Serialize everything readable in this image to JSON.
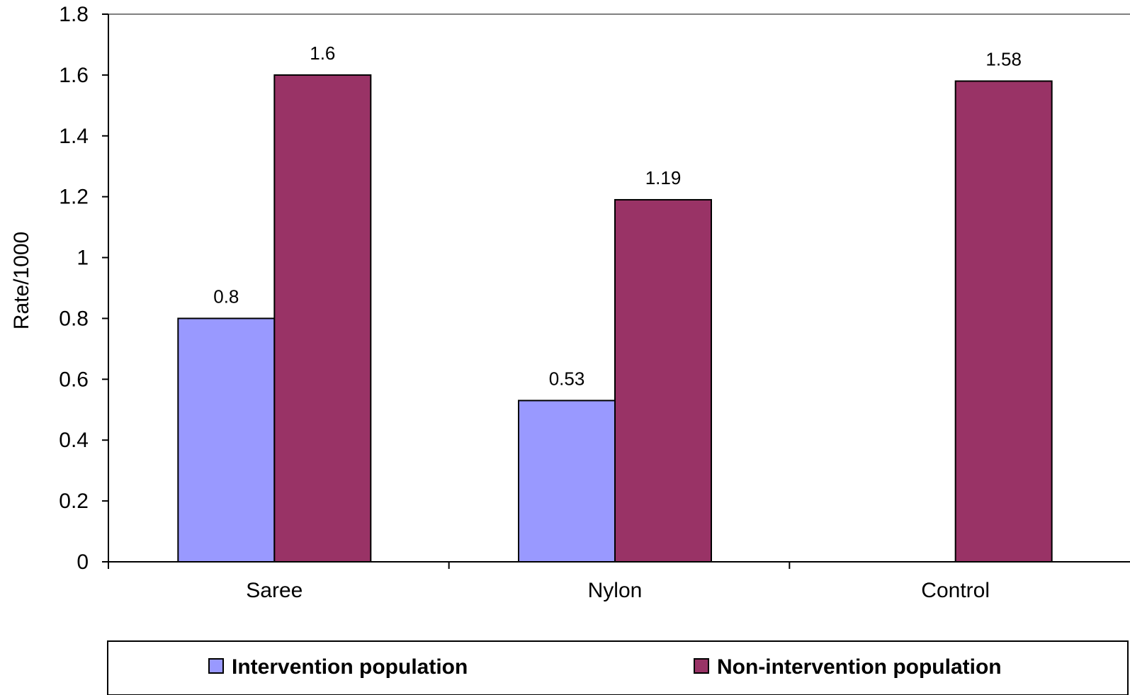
{
  "chart_data": {
    "type": "bar",
    "categories": [
      "Saree",
      "Nylon",
      "Control"
    ],
    "series": [
      {
        "name": "Intervention population",
        "color": "#9999ff",
        "values": [
          0.8,
          0.53,
          null
        ],
        "labels": [
          "0.8",
          "0.53",
          ""
        ]
      },
      {
        "name": "Non-intervention population",
        "color": "#993366",
        "values": [
          1.6,
          1.19,
          1.58
        ],
        "labels": [
          "1.6",
          "1.19",
          "1.58"
        ]
      }
    ],
    "title": "",
    "xlabel": "",
    "ylabel": "Rate/1000",
    "ylim": [
      0,
      1.8
    ],
    "yticks": [
      0,
      0.2,
      0.4,
      0.6,
      0.8,
      1,
      1.2,
      1.4,
      1.6,
      1.8
    ],
    "ytick_labels": [
      "0",
      "0.2",
      "0.4",
      "0.6",
      "0.8",
      "1",
      "1.2",
      "1.4",
      "1.6",
      "1.8"
    ],
    "grid": false,
    "legend_position": "bottom"
  }
}
